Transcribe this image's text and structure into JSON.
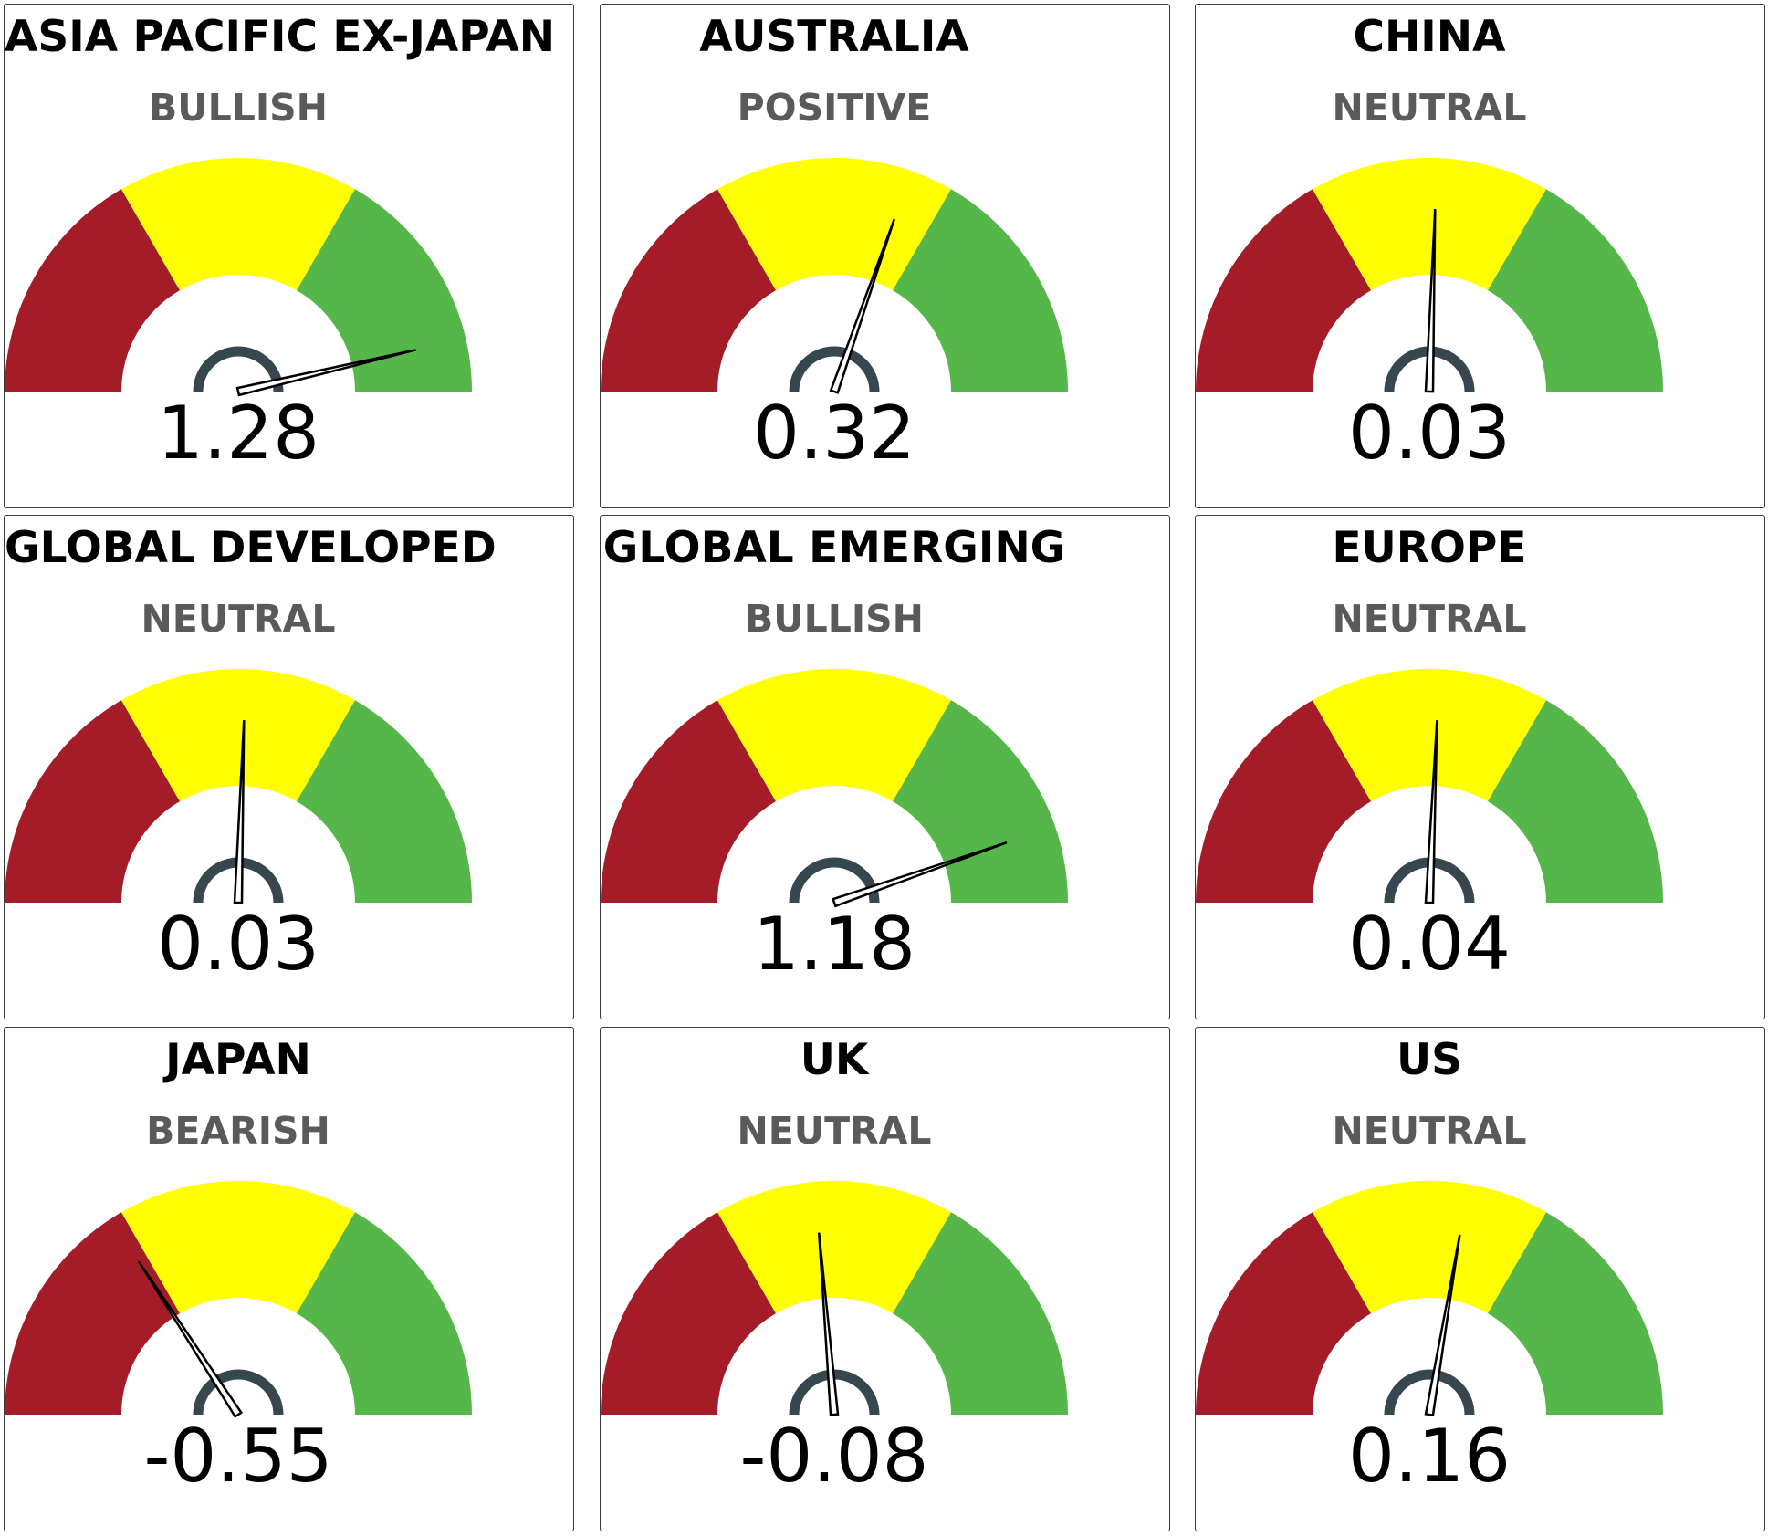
{
  "chart_data": {
    "type": "gauge",
    "range": [
      -1.5,
      1.5
    ],
    "bands": [
      {
        "from": -1.5,
        "to": -0.5,
        "color": "#a41c28"
      },
      {
        "from": -0.5,
        "to": 0.5,
        "color": "#ffff00"
      },
      {
        "from": 0.5,
        "to": 1.5,
        "color": "#55b749"
      }
    ],
    "gauges": [
      {
        "title": "ASIA PACIFIC EX-JAPAN",
        "status": "BULLISH",
        "value": 1.28,
        "value_label": "1.28"
      },
      {
        "title": "AUSTRALIA",
        "status": "POSITIVE",
        "value": 0.32,
        "value_label": "0.32"
      },
      {
        "title": "CHINA",
        "status": "NEUTRAL",
        "value": 0.03,
        "value_label": "0.03"
      },
      {
        "title": "GLOBAL DEVELOPED",
        "status": "NEUTRAL",
        "value": 0.03,
        "value_label": "0.03"
      },
      {
        "title": "GLOBAL EMERGING",
        "status": "BULLISH",
        "value": 1.18,
        "value_label": "1.18"
      },
      {
        "title": "EUROPE",
        "status": "NEUTRAL",
        "value": 0.04,
        "value_label": "0.04"
      },
      {
        "title": "JAPAN",
        "status": "BEARISH",
        "value": -0.55,
        "value_label": "-0.55"
      },
      {
        "title": "UK",
        "status": "NEUTRAL",
        "value": -0.08,
        "value_label": "-0.08"
      },
      {
        "title": "US",
        "status": "NEUTRAL",
        "value": 0.16,
        "value_label": "0.16"
      }
    ],
    "needle_color": "#000000",
    "hub_color": "#37474f"
  }
}
